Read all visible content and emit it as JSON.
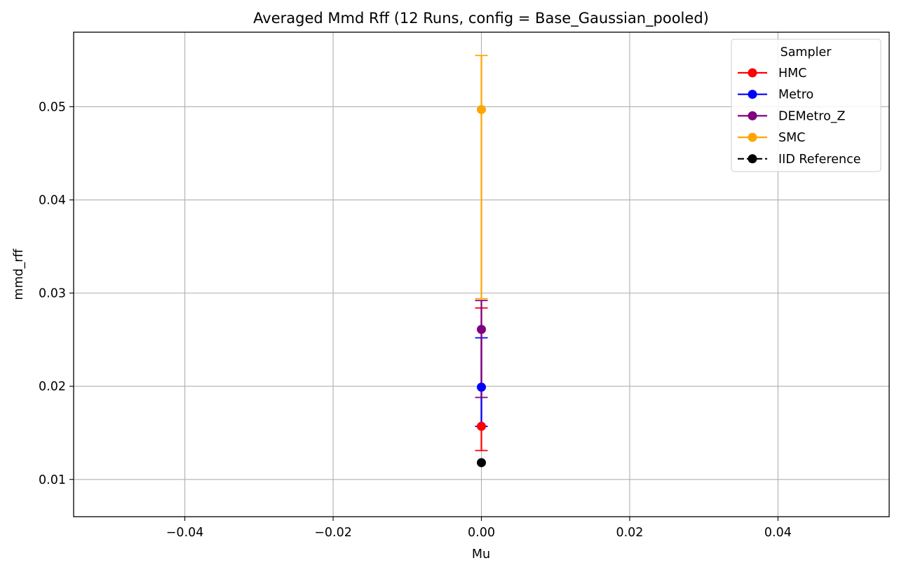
{
  "chart_data": {
    "type": "scatter",
    "title": "Averaged Mmd Rff (12 Runs, config = Base_Gaussian_pooled)",
    "xlabel": "Mu",
    "ylabel": "mmd_rff",
    "xlim": [
      -0.055,
      0.055
    ],
    "ylim": [
      0.006,
      0.058
    ],
    "xticks": [
      -0.04,
      -0.02,
      0.0,
      0.02,
      0.04
    ],
    "xtick_labels": [
      "−0.04",
      "−0.02",
      "0.00",
      "0.02",
      "0.04"
    ],
    "yticks": [
      0.01,
      0.02,
      0.03,
      0.04,
      0.05
    ],
    "ytick_labels": [
      "0.01",
      "0.02",
      "0.03",
      "0.04",
      "0.05"
    ],
    "grid": true,
    "legend": {
      "title": "Sampler",
      "placement": "top-right"
    },
    "series": [
      {
        "name": "HMC",
        "color": "#ff0000",
        "style": "solid",
        "x": [
          0.0
        ],
        "y": [
          0.0157
        ],
        "yerr_low": [
          0.0131
        ],
        "yerr_high": [
          0.0284
        ]
      },
      {
        "name": "Metro",
        "color": "#0000ff",
        "style": "solid",
        "x": [
          0.0
        ],
        "y": [
          0.0199
        ],
        "yerr_low": [
          0.0157
        ],
        "yerr_high": [
          0.0252
        ]
      },
      {
        "name": "DEMetro_Z",
        "color": "#800080",
        "style": "solid",
        "x": [
          0.0
        ],
        "y": [
          0.0261
        ],
        "yerr_low": [
          0.0188
        ],
        "yerr_high": [
          0.0292
        ]
      },
      {
        "name": "SMC",
        "color": "#ffa500",
        "style": "solid",
        "x": [
          0.0
        ],
        "y": [
          0.0497
        ],
        "yerr_low": [
          0.0294
        ],
        "yerr_high": [
          0.0555
        ]
      },
      {
        "name": "IID Reference",
        "color": "#000000",
        "style": "dashed",
        "x": [
          0.0
        ],
        "y": [
          0.0118
        ]
      }
    ]
  }
}
